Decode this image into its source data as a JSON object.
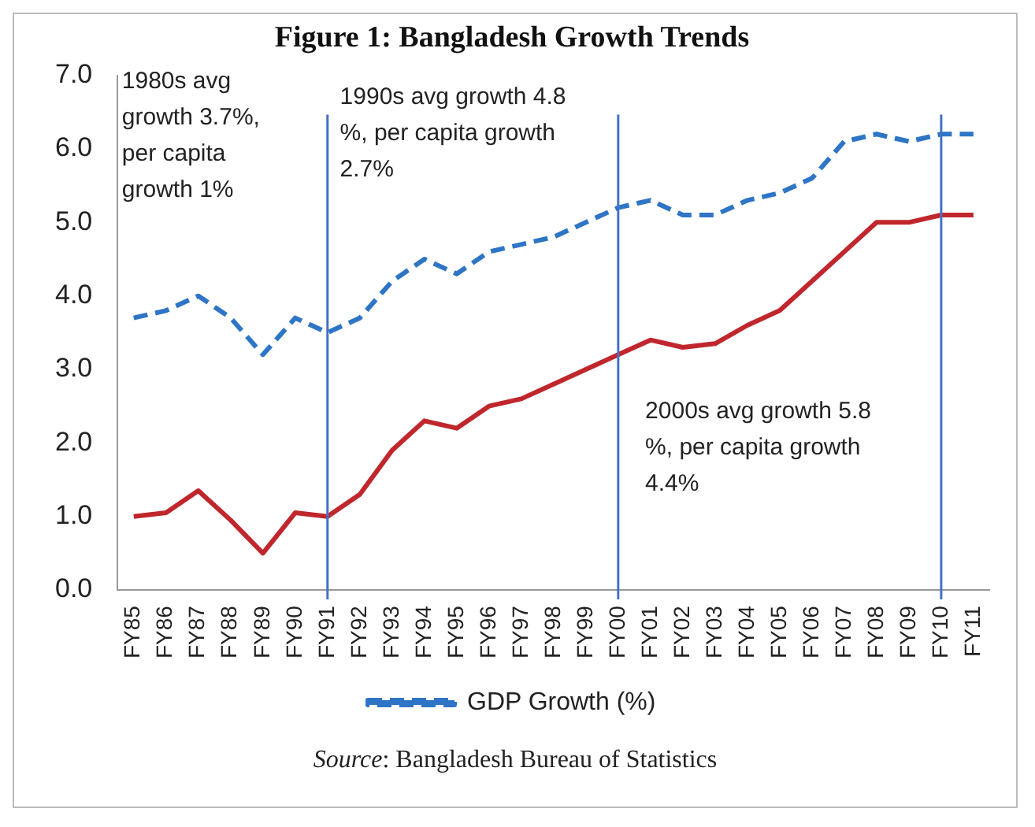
{
  "chart_data": {
    "type": "line",
    "title": "Figure 1: Bangladesh Growth Trends",
    "categories": [
      "FY85",
      "FY86",
      "FY87",
      "FY88",
      "FY89",
      "FY90",
      "FY91",
      "FY92",
      "FY93",
      "FY94",
      "FY95",
      "FY96",
      "FY97",
      "FY98",
      "FY99",
      "FY00",
      "FY01",
      "FY02",
      "FY03",
      "FY04",
      "FY05",
      "FY06",
      "FY07",
      "FY08",
      "FY09",
      "FY10",
      "FY11"
    ],
    "series": [
      {
        "name": "GDP Growth (%)",
        "color": "#2e75c6",
        "line_style": "dashed",
        "values": [
          3.7,
          3.8,
          4.0,
          3.7,
          3.2,
          3.7,
          3.5,
          3.7,
          4.2,
          4.5,
          4.3,
          4.6,
          4.7,
          4.8,
          5.0,
          5.2,
          5.3,
          5.1,
          5.1,
          5.3,
          5.4,
          5.6,
          6.1,
          6.2,
          6.1,
          6.2,
          6.2
        ]
      },
      {
        "color": "#c0272d",
        "line_style": "solid",
        "values": [
          1.0,
          1.05,
          1.35,
          0.95,
          0.5,
          1.05,
          1.0,
          1.3,
          1.9,
          2.3,
          2.2,
          2.5,
          2.6,
          2.8,
          3.0,
          3.2,
          3.4,
          3.3,
          3.35,
          3.6,
          3.8,
          4.2,
          4.6,
          5.0,
          5.0,
          5.1,
          5.1
        ]
      }
    ],
    "ylim": [
      0,
      7
    ],
    "yticks": [
      {
        "value": 0,
        "label": "0.0"
      },
      {
        "value": 1,
        "label": "1.0"
      },
      {
        "value": 2,
        "label": "2.0"
      },
      {
        "value": 3,
        "label": "3.0"
      },
      {
        "value": 4,
        "label": "4.0"
      },
      {
        "value": 5,
        "label": "5.0"
      },
      {
        "value": 6,
        "label": "6.0"
      },
      {
        "value": 7,
        "label": "7.0"
      }
    ],
    "ref_lines": [
      {
        "axis": "x",
        "value": "FY91",
        "color": "#4472c4"
      },
      {
        "axis": "x",
        "value": "FY00",
        "color": "#4472c4"
      },
      {
        "axis": "x",
        "value": "FY10",
        "color": "#4472c4"
      }
    ],
    "annotations": [
      "1980s avg growth 3.7%, per capita growth 1%",
      "1990s avg growth 4.8 %, per capita growth 2.7%",
      "2000s avg growth 5.8 %, per capita growth 4.4%",
      "Source: Bangladesh Bureau of Statistics"
    ],
    "grid": false,
    "legend": "bottom",
    "marker": "none"
  }
}
